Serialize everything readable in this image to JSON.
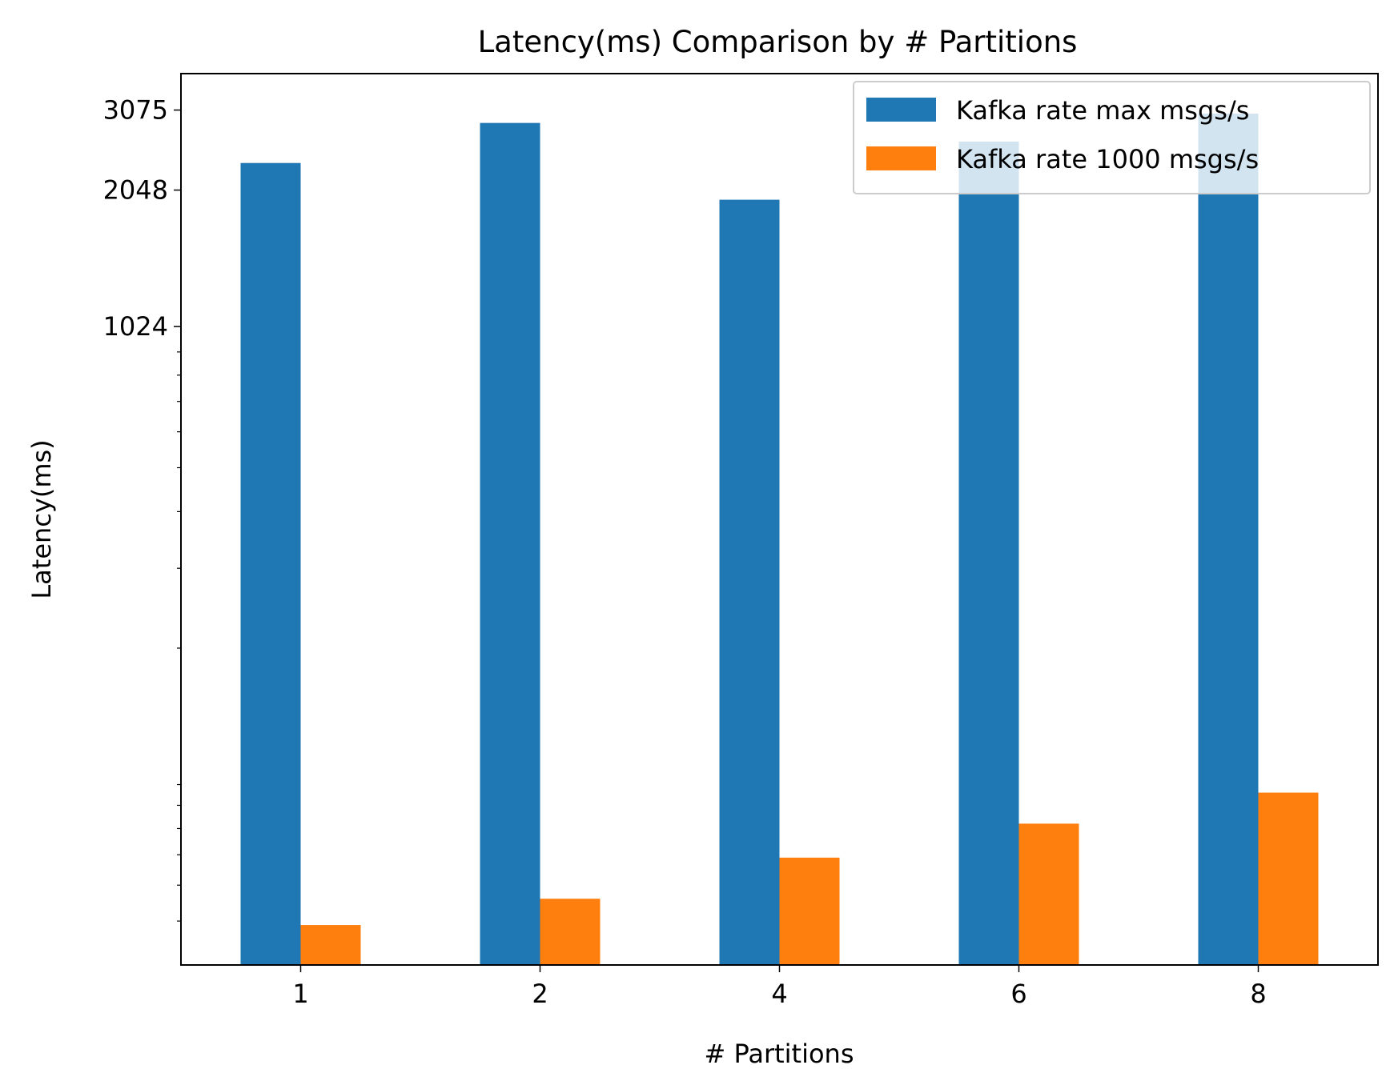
{
  "chart_data": {
    "type": "bar",
    "title": "Latency(ms) Comparison by # Partitions",
    "xlabel": "# Partitions",
    "ylabel": "Latency(ms)",
    "categories": [
      "1",
      "2",
      "4",
      "6",
      "8"
    ],
    "yscale": "log",
    "ylim": [
      40,
      3700
    ],
    "yticks": [
      1024,
      2048,
      3075
    ],
    "yticklabels": [
      "1024",
      "2048",
      "3075"
    ],
    "grid": false,
    "legend": "top-right",
    "series": [
      {
        "name": "Kafka rate max msgs/s",
        "color": "#1f77b4",
        "values": [
          2350,
          2880,
          1950,
          2620,
          3020
        ]
      },
      {
        "name": "Kafka rate 1000 msgs/s",
        "color": "#ff7f0e",
        "values": [
          49,
          56,
          69,
          82,
          96
        ]
      }
    ]
  }
}
